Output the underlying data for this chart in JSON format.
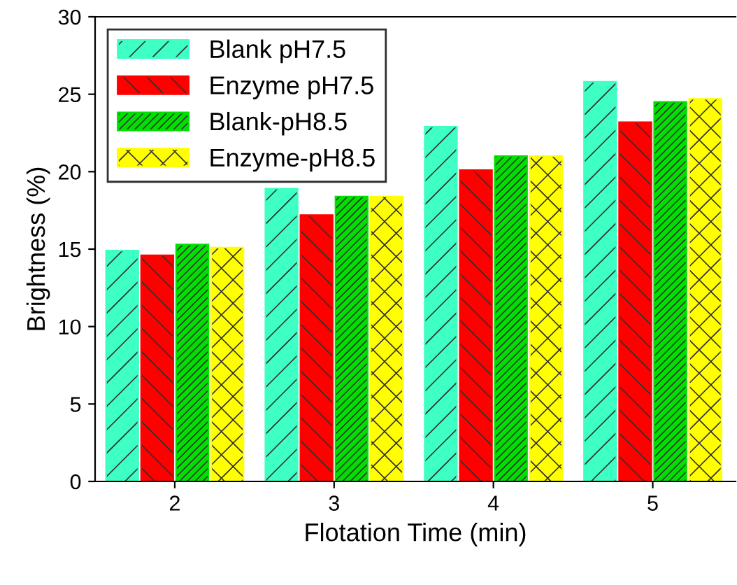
{
  "chart_data": {
    "type": "bar",
    "xlabel": "Flotation Time (min)",
    "ylabel": "Brightness (%)",
    "categories": [
      "2",
      "3",
      "4",
      "5"
    ],
    "series": [
      {
        "name": "Blank pH7.5",
        "color": "#3effc4",
        "values": [
          14.9,
          18.9,
          22.9,
          25.8
        ]
      },
      {
        "name": "Enzyme pH7.5",
        "color": "#ff0000",
        "values": [
          14.6,
          17.2,
          20.1,
          23.2
        ]
      },
      {
        "name": "Blank-pH8.5",
        "color": "#00e000",
        "values": [
          15.3,
          18.4,
          21.0,
          24.5
        ]
      },
      {
        "name": "Enzyme-pH8.5",
        "color": "#ffff00",
        "values": [
          15.1,
          18.4,
          21.0,
          24.7
        ]
      }
    ],
    "ylim": [
      0,
      30
    ],
    "yticks": [
      0,
      5,
      10,
      15,
      20,
      25,
      30
    ],
    "grid": false,
    "legend": "top left"
  }
}
